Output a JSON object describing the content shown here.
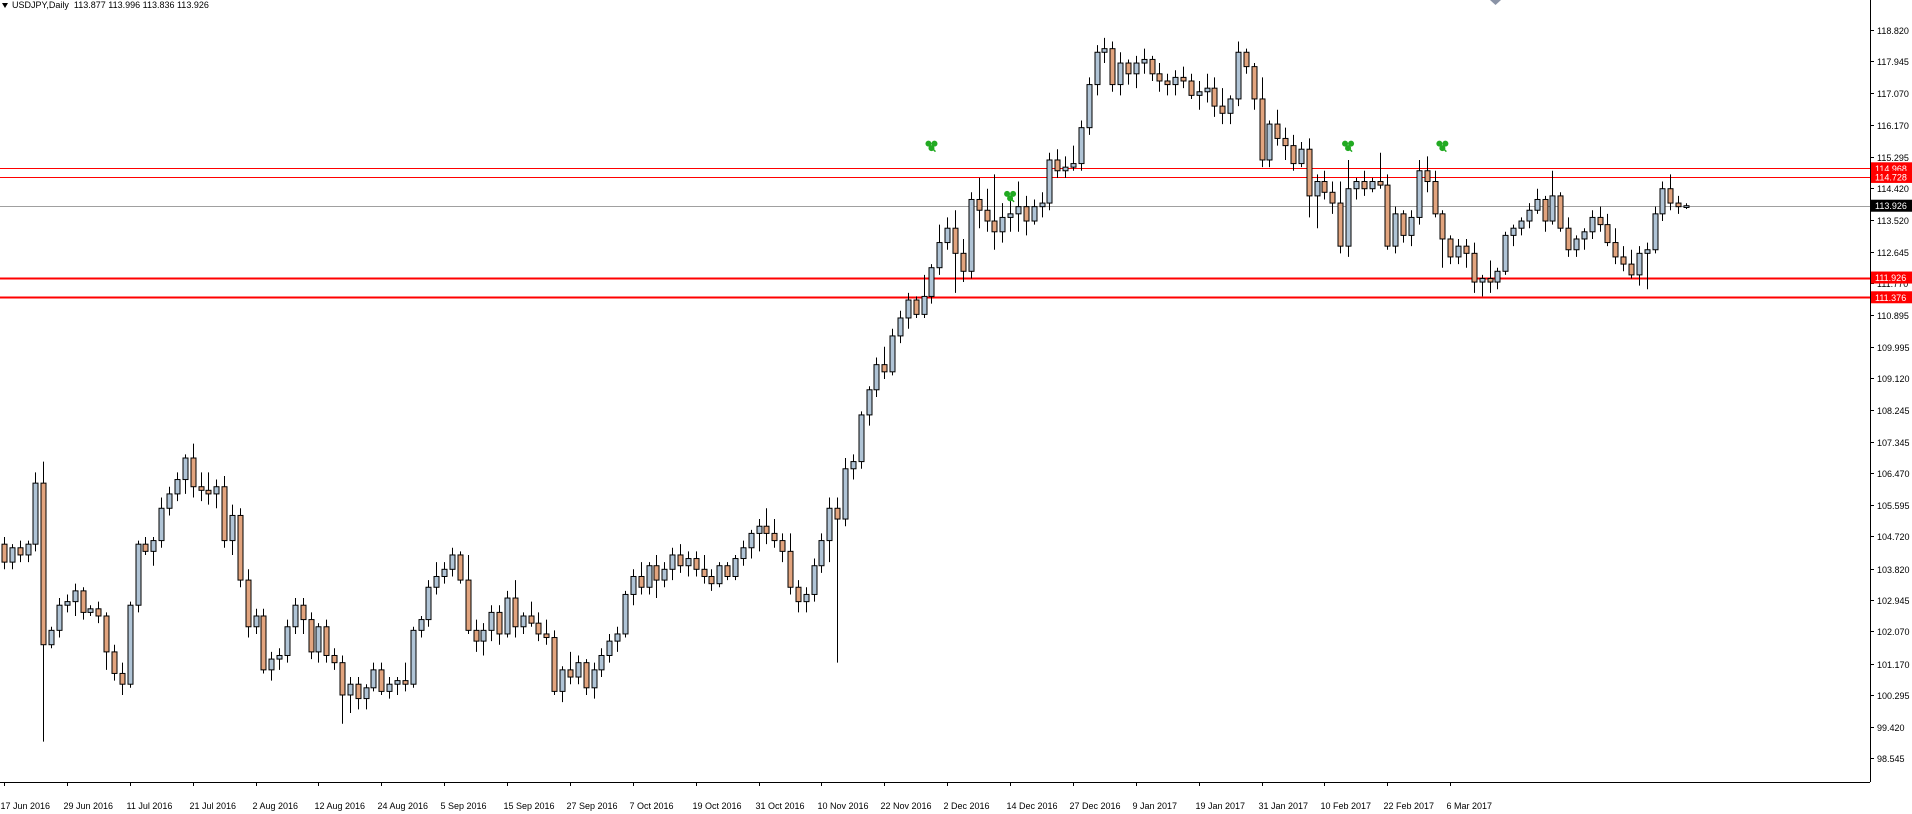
{
  "header": {
    "symbol": "USDJPY,Daily",
    "ohlc": "113.877 113.996 113.836 113.926"
  },
  "colors": {
    "bull_body": "#b0c4d6",
    "bear_body": "#e2a47e",
    "candle_outline": "#000000",
    "level_line": "#ff0000",
    "price_line": "#a0a0a0",
    "price_label_bg": "#000000",
    "level_label_bg": "#ff0000",
    "marker": "#22aa22",
    "axis": "#000000"
  },
  "chart_data": {
    "type": "candlestick",
    "title": "USDJPY,Daily",
    "xlabel": "",
    "ylabel": "",
    "ylim": [
      98.2,
      119.3
    ],
    "grid": false,
    "y_ticks": [
      "118.820",
      "117.945",
      "117.070",
      "116.170",
      "115.295",
      "114.420",
      "113.520",
      "112.645",
      "111.770",
      "110.895",
      "109.995",
      "109.120",
      "108.245",
      "107.345",
      "106.470",
      "105.595",
      "104.720",
      "103.820",
      "102.945",
      "102.070",
      "101.170",
      "100.295",
      "99.420",
      "98.545"
    ],
    "x_tick_labels": [
      "17 Jun 2016",
      "29 Jun 2016",
      "11 Jul 2016",
      "21 Jul 2016",
      "2 Aug 2016",
      "12 Aug 2016",
      "24 Aug 2016",
      "5 Sep 2016",
      "15 Sep 2016",
      "27 Sep 2016",
      "7 Oct 2016",
      "19 Oct 2016",
      "31 Oct 2016",
      "10 Nov 2016",
      "22 Nov 2016",
      "2 Dec 2016",
      "14 Dec 2016",
      "27 Dec 2016",
      "9 Jan 2017",
      "19 Jan 2017",
      "31 Jan 2017",
      "10 Feb 2017",
      "22 Feb 2017",
      "6 Mar 2017"
    ],
    "x_tick_index": [
      0,
      8,
      16,
      24,
      32,
      40,
      48,
      56,
      64,
      72,
      80,
      88,
      96,
      104,
      112,
      120,
      128,
      136,
      144,
      152,
      160,
      168,
      176,
      184
    ],
    "current_price": "113.926",
    "horizontal_levels": [
      {
        "value": 114.968,
        "label": "114.968"
      },
      {
        "value": 114.728,
        "label": "114.728"
      },
      {
        "value": 111.926,
        "label": "111.926"
      },
      {
        "value": 111.376,
        "label": "111.376"
      }
    ],
    "markers": [
      {
        "index": 118,
        "value": 115.6
      },
      {
        "index": 128,
        "value": 114.2
      },
      {
        "index": 171,
        "value": 115.6
      },
      {
        "index": 183,
        "value": 115.6
      }
    ],
    "candles": [
      [
        104.5,
        104.7,
        103.8,
        104.0
      ],
      [
        104.0,
        104.5,
        103.8,
        104.4
      ],
      [
        104.4,
        104.6,
        104.0,
        104.2
      ],
      [
        104.2,
        104.6,
        104.0,
        104.5
      ],
      [
        104.5,
        106.5,
        104.3,
        106.2
      ],
      [
        106.2,
        106.8,
        99.0,
        101.7
      ],
      [
        101.7,
        102.2,
        101.6,
        102.1
      ],
      [
        102.1,
        103.0,
        101.9,
        102.8
      ],
      [
        102.8,
        103.1,
        102.6,
        102.9
      ],
      [
        102.9,
        103.4,
        102.5,
        103.2
      ],
      [
        103.2,
        103.3,
        102.4,
        102.6
      ],
      [
        102.6,
        102.8,
        102.5,
        102.7
      ],
      [
        102.7,
        102.9,
        102.3,
        102.5
      ],
      [
        102.5,
        102.6,
        101.0,
        101.5
      ],
      [
        101.5,
        101.7,
        100.7,
        100.9
      ],
      [
        100.9,
        101.2,
        100.3,
        100.6
      ],
      [
        100.6,
        102.9,
        100.5,
        102.8
      ],
      [
        102.8,
        104.6,
        102.6,
        104.5
      ],
      [
        104.5,
        104.7,
        104.2,
        104.3
      ],
      [
        104.3,
        104.7,
        103.9,
        104.6
      ],
      [
        104.6,
        105.8,
        104.4,
        105.5
      ],
      [
        105.5,
        106.1,
        105.3,
        105.9
      ],
      [
        105.9,
        106.5,
        105.7,
        106.3
      ],
      [
        106.3,
        107.0,
        105.9,
        106.9
      ],
      [
        106.9,
        107.3,
        105.8,
        106.1
      ],
      [
        106.1,
        106.5,
        105.7,
        106.0
      ],
      [
        106.0,
        106.5,
        105.6,
        105.9
      ],
      [
        105.9,
        106.3,
        105.5,
        106.1
      ],
      [
        106.1,
        106.4,
        104.4,
        104.6
      ],
      [
        104.6,
        105.6,
        104.2,
        105.3
      ],
      [
        105.3,
        105.5,
        103.3,
        103.5
      ],
      [
        103.5,
        103.8,
        101.9,
        102.2
      ],
      [
        102.2,
        102.7,
        102.0,
        102.5
      ],
      [
        102.5,
        102.7,
        100.9,
        101.0
      ],
      [
        101.0,
        101.5,
        100.7,
        101.3
      ],
      [
        101.3,
        101.6,
        101.0,
        101.4
      ],
      [
        101.4,
        102.4,
        101.2,
        102.2
      ],
      [
        102.2,
        103.0,
        102.0,
        102.8
      ],
      [
        102.8,
        103.0,
        102.0,
        102.4
      ],
      [
        102.4,
        102.6,
        101.3,
        101.5
      ],
      [
        101.5,
        102.3,
        101.2,
        102.2
      ],
      [
        102.2,
        102.4,
        101.2,
        101.4
      ],
      [
        101.4,
        101.6,
        101.0,
        101.2
      ],
      [
        101.2,
        101.4,
        99.5,
        100.3
      ],
      [
        100.3,
        100.8,
        99.8,
        100.6
      ],
      [
        100.6,
        100.8,
        99.9,
        100.2
      ],
      [
        100.2,
        100.6,
        99.9,
        100.5
      ],
      [
        100.5,
        101.2,
        100.4,
        101.0
      ],
      [
        101.0,
        101.2,
        100.3,
        100.4
      ],
      [
        100.4,
        100.8,
        100.2,
        100.6
      ],
      [
        100.6,
        100.8,
        100.3,
        100.7
      ],
      [
        100.7,
        101.2,
        100.4,
        100.6
      ],
      [
        100.6,
        102.2,
        100.5,
        102.1
      ],
      [
        102.1,
        102.5,
        101.9,
        102.4
      ],
      [
        102.4,
        103.5,
        102.2,
        103.3
      ],
      [
        103.3,
        104.0,
        103.1,
        103.6
      ],
      [
        103.6,
        104.0,
        103.4,
        103.8
      ],
      [
        103.8,
        104.4,
        103.6,
        104.2
      ],
      [
        104.2,
        104.3,
        103.4,
        103.5
      ],
      [
        103.5,
        104.2,
        102.0,
        102.1
      ],
      [
        102.1,
        102.4,
        101.5,
        101.8
      ],
      [
        101.8,
        102.3,
        101.4,
        102.1
      ],
      [
        102.1,
        102.8,
        101.8,
        102.6
      ],
      [
        102.6,
        102.8,
        101.7,
        102.0
      ],
      [
        102.0,
        103.2,
        101.9,
        103.0
      ],
      [
        103.0,
        103.5,
        101.9,
        102.2
      ],
      [
        102.2,
        102.6,
        102.0,
        102.5
      ],
      [
        102.5,
        102.9,
        102.2,
        102.3
      ],
      [
        102.3,
        102.6,
        101.8,
        102.0
      ],
      [
        102.0,
        102.4,
        101.7,
        101.9
      ],
      [
        101.9,
        102.1,
        100.3,
        100.4
      ],
      [
        100.4,
        101.1,
        100.1,
        101.0
      ],
      [
        101.0,
        101.5,
        100.6,
        100.8
      ],
      [
        100.8,
        101.4,
        100.6,
        101.2
      ],
      [
        101.2,
        101.3,
        100.3,
        100.5
      ],
      [
        100.5,
        101.2,
        100.2,
        101.0
      ],
      [
        101.0,
        101.6,
        100.8,
        101.4
      ],
      [
        101.4,
        102.0,
        101.2,
        101.8
      ],
      [
        101.8,
        102.2,
        101.5,
        102.0
      ],
      [
        102.0,
        103.2,
        101.9,
        103.1
      ],
      [
        103.1,
        103.8,
        102.8,
        103.6
      ],
      [
        103.6,
        104.0,
        103.1,
        103.3
      ],
      [
        103.3,
        104.0,
        103.1,
        103.9
      ],
      [
        103.9,
        104.2,
        103.0,
        103.5
      ],
      [
        103.5,
        104.0,
        103.3,
        103.8
      ],
      [
        103.8,
        104.4,
        103.5,
        104.2
      ],
      [
        104.2,
        104.5,
        103.7,
        103.9
      ],
      [
        103.9,
        104.3,
        103.6,
        104.1
      ],
      [
        104.1,
        104.3,
        103.6,
        103.8
      ],
      [
        103.8,
        104.2,
        103.4,
        103.6
      ],
      [
        103.6,
        103.8,
        103.2,
        103.4
      ],
      [
        103.4,
        104.0,
        103.3,
        103.9
      ],
      [
        103.9,
        104.0,
        103.5,
        103.6
      ],
      [
        103.6,
        104.2,
        103.5,
        104.1
      ],
      [
        104.1,
        104.6,
        103.9,
        104.4
      ],
      [
        104.4,
        104.9,
        104.1,
        104.8
      ],
      [
        104.8,
        105.2,
        104.3,
        105.0
      ],
      [
        105.0,
        105.5,
        104.5,
        104.8
      ],
      [
        104.8,
        105.2,
        104.4,
        104.6
      ],
      [
        104.6,
        104.8,
        104.0,
        104.3
      ],
      [
        104.3,
        104.8,
        103.1,
        103.3
      ],
      [
        103.3,
        103.5,
        102.6,
        102.9
      ],
      [
        102.9,
        103.3,
        102.6,
        103.1
      ],
      [
        103.1,
        104.1,
        102.9,
        103.9
      ],
      [
        103.9,
        104.8,
        103.7,
        104.6
      ],
      [
        104.6,
        105.8,
        104.0,
        105.5
      ],
      [
        105.5,
        105.8,
        101.2,
        105.2
      ],
      [
        105.2,
        106.9,
        105.0,
        106.6
      ],
      [
        106.6,
        107.0,
        106.3,
        106.8
      ],
      [
        106.8,
        108.2,
        106.6,
        108.1
      ],
      [
        108.1,
        108.9,
        107.8,
        108.8
      ],
      [
        108.8,
        109.7,
        108.6,
        109.5
      ],
      [
        109.5,
        110.0,
        109.1,
        109.3
      ],
      [
        109.3,
        110.5,
        109.2,
        110.3
      ],
      [
        110.3,
        111.0,
        110.1,
        110.8
      ],
      [
        110.8,
        111.5,
        110.5,
        111.3
      ],
      [
        111.3,
        111.4,
        110.8,
        110.9
      ],
      [
        110.9,
        112.0,
        110.8,
        111.4
      ],
      [
        111.4,
        112.3,
        111.2,
        112.2
      ],
      [
        112.2,
        113.4,
        112.0,
        112.9
      ],
      [
        112.9,
        113.6,
        112.7,
        113.3
      ],
      [
        113.3,
        113.8,
        111.5,
        112.6
      ],
      [
        112.6,
        113.0,
        111.8,
        112.1
      ],
      [
        112.1,
        114.3,
        111.9,
        114.1
      ],
      [
        114.1,
        114.7,
        113.3,
        113.8
      ],
      [
        113.8,
        114.4,
        113.2,
        113.5
      ],
      [
        113.5,
        114.8,
        112.7,
        113.2
      ],
      [
        113.2,
        114.0,
        112.9,
        113.6
      ],
      [
        113.6,
        114.1,
        113.2,
        113.7
      ],
      [
        113.7,
        114.6,
        113.2,
        113.9
      ],
      [
        113.9,
        114.2,
        113.1,
        113.5
      ],
      [
        113.5,
        114.1,
        113.4,
        113.9
      ],
      [
        113.9,
        114.3,
        113.6,
        114.0
      ],
      [
        114.0,
        115.4,
        113.8,
        115.2
      ],
      [
        115.2,
        115.5,
        114.7,
        114.9
      ],
      [
        114.9,
        115.3,
        114.7,
        115.0
      ],
      [
        115.0,
        115.6,
        114.9,
        115.1
      ],
      [
        115.1,
        116.3,
        114.9,
        116.1
      ],
      [
        116.1,
        117.5,
        115.9,
        117.3
      ],
      [
        117.3,
        118.4,
        117.0,
        118.2
      ],
      [
        118.2,
        118.6,
        117.9,
        118.3
      ],
      [
        118.3,
        118.5,
        117.1,
        117.3
      ],
      [
        117.3,
        118.2,
        117.0,
        117.9
      ],
      [
        117.9,
        118.0,
        117.3,
        117.6
      ],
      [
        117.6,
        118.1,
        117.2,
        117.9
      ],
      [
        117.9,
        118.3,
        117.6,
        118.0
      ],
      [
        118.0,
        118.1,
        117.4,
        117.6
      ],
      [
        117.6,
        117.9,
        117.1,
        117.4
      ],
      [
        117.4,
        117.6,
        117.0,
        117.3
      ],
      [
        117.3,
        117.7,
        117.0,
        117.5
      ],
      [
        117.5,
        117.8,
        117.2,
        117.4
      ],
      [
        117.4,
        117.6,
        116.9,
        117.0
      ],
      [
        117.0,
        117.4,
        116.6,
        117.1
      ],
      [
        117.1,
        117.6,
        116.8,
        117.2
      ],
      [
        117.2,
        117.5,
        116.4,
        116.7
      ],
      [
        116.7,
        117.2,
        116.2,
        116.5
      ],
      [
        116.5,
        117.0,
        116.2,
        116.9
      ],
      [
        116.9,
        118.5,
        116.7,
        118.2
      ],
      [
        118.2,
        118.3,
        117.6,
        117.8
      ],
      [
        117.8,
        117.9,
        116.6,
        116.9
      ],
      [
        116.9,
        117.5,
        115.0,
        115.2
      ],
      [
        115.2,
        116.3,
        115.0,
        116.2
      ],
      [
        116.2,
        116.6,
        115.6,
        115.8
      ],
      [
        115.8,
        116.1,
        115.2,
        115.6
      ],
      [
        115.6,
        115.9,
        114.9,
        115.1
      ],
      [
        115.1,
        115.7,
        115.0,
        115.5
      ],
      [
        115.5,
        115.8,
        113.6,
        114.2
      ],
      [
        114.2,
        114.8,
        113.3,
        114.6
      ],
      [
        114.6,
        114.9,
        114.1,
        114.3
      ],
      [
        114.3,
        114.6,
        113.7,
        114.0
      ],
      [
        114.0,
        114.6,
        112.6,
        112.8
      ],
      [
        112.8,
        115.2,
        112.5,
        114.4
      ],
      [
        114.4,
        114.7,
        114.1,
        114.6
      ],
      [
        114.6,
        114.9,
        114.2,
        114.4
      ],
      [
        114.4,
        114.7,
        114.3,
        114.6
      ],
      [
        114.6,
        115.4,
        114.4,
        114.5
      ],
      [
        114.5,
        114.8,
        112.7,
        112.8
      ],
      [
        112.8,
        113.9,
        112.6,
        113.7
      ],
      [
        113.7,
        113.8,
        112.9,
        113.1
      ],
      [
        113.1,
        113.8,
        112.8,
        113.6
      ],
      [
        113.6,
        115.2,
        113.4,
        114.9
      ],
      [
        114.9,
        115.3,
        114.3,
        114.6
      ],
      [
        114.6,
        114.9,
        113.6,
        113.7
      ],
      [
        113.7,
        113.8,
        112.2,
        113.0
      ],
      [
        113.0,
        113.1,
        112.3,
        112.5
      ],
      [
        112.5,
        113.0,
        112.3,
        112.8
      ],
      [
        112.8,
        113.0,
        112.2,
        112.6
      ],
      [
        112.6,
        112.9,
        111.5,
        111.8
      ],
      [
        111.8,
        112.0,
        111.4,
        111.9
      ],
      [
        111.9,
        112.4,
        111.5,
        111.8
      ],
      [
        111.8,
        112.2,
        111.6,
        112.1
      ],
      [
        112.1,
        113.2,
        112.0,
        113.1
      ],
      [
        113.1,
        113.4,
        112.8,
        113.3
      ],
      [
        113.3,
        113.6,
        113.1,
        113.5
      ],
      [
        113.5,
        114.0,
        113.3,
        113.8
      ],
      [
        113.8,
        114.4,
        113.7,
        114.1
      ],
      [
        114.1,
        114.2,
        113.2,
        113.5
      ],
      [
        113.5,
        114.9,
        113.4,
        114.2
      ],
      [
        114.2,
        114.3,
        113.2,
        113.3
      ],
      [
        113.3,
        113.6,
        112.5,
        112.7
      ],
      [
        112.7,
        113.1,
        112.5,
        113.0
      ],
      [
        113.0,
        113.3,
        112.7,
        113.2
      ],
      [
        113.2,
        113.8,
        113.0,
        113.6
      ],
      [
        113.6,
        113.9,
        113.2,
        113.4
      ],
      [
        113.4,
        113.7,
        112.8,
        112.9
      ],
      [
        112.9,
        113.3,
        112.3,
        112.5
      ],
      [
        112.5,
        112.8,
        112.1,
        112.3
      ],
      [
        112.3,
        112.7,
        111.9,
        112.0
      ],
      [
        112.0,
        112.8,
        111.7,
        112.6
      ],
      [
        112.6,
        112.9,
        111.6,
        112.7
      ],
      [
        112.7,
        113.9,
        112.6,
        113.7
      ],
      [
        113.7,
        114.6,
        113.5,
        114.4
      ],
      [
        114.4,
        114.8,
        113.8,
        114.0
      ],
      [
        114.0,
        114.2,
        113.7,
        113.9
      ],
      [
        113.877,
        113.996,
        113.836,
        113.926
      ]
    ]
  }
}
